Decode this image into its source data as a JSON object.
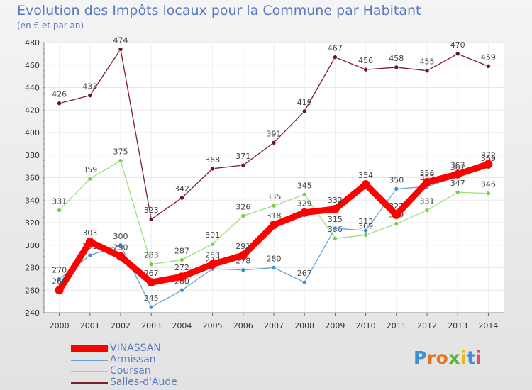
{
  "header": {
    "title": "Evolution des Impôts locaux pour la Commune par Habitant",
    "subtitle": "(en € et par an)"
  },
  "logo": {
    "text": "Proxiti"
  },
  "chart_data": {
    "type": "line",
    "title": "Evolution des Impôts locaux pour la Commune par Habitant",
    "subtitle": "(en € et par an)",
    "xlabel": "",
    "ylabel": "",
    "x": [
      "2000",
      "2001",
      "2002",
      "2003",
      "2004",
      "2005",
      "2006",
      "2007",
      "2008",
      "2009",
      "2010",
      "2011",
      "2012",
      "2013",
      "2014"
    ],
    "ylim": [
      240,
      480
    ],
    "yticks": [
      240,
      260,
      280,
      300,
      320,
      340,
      360,
      380,
      400,
      420,
      440,
      460,
      480
    ],
    "grid": true,
    "legend_position": "bottom-left",
    "series": [
      {
        "name": "Salles-d'Aude",
        "color": "#7a1f2b",
        "values": [
          426,
          433,
          474,
          323,
          342,
          368,
          371,
          391,
          419,
          467,
          456,
          458,
          455,
          470,
          459
        ]
      },
      {
        "name": "Coursan",
        "color": "#99e07a",
        "values": [
          331,
          359,
          375,
          283,
          287,
          301,
          326,
          335,
          345,
          306,
          309,
          319,
          331,
          347,
          346
        ]
      },
      {
        "name": "Armissan",
        "color": "#6aa3d6",
        "values": [
          270,
          291,
          300,
          245,
          260,
          279,
          278,
          280,
          267,
          315,
          313,
          350,
          352,
          361,
          369
        ]
      },
      {
        "name": "VINASSAN",
        "color": "#ff0000",
        "values": [
          260,
          303,
          290,
          267,
          272,
          283,
          291,
          318,
          329,
          332,
          354,
          327,
          356,
          363,
          372
        ]
      }
    ]
  }
}
